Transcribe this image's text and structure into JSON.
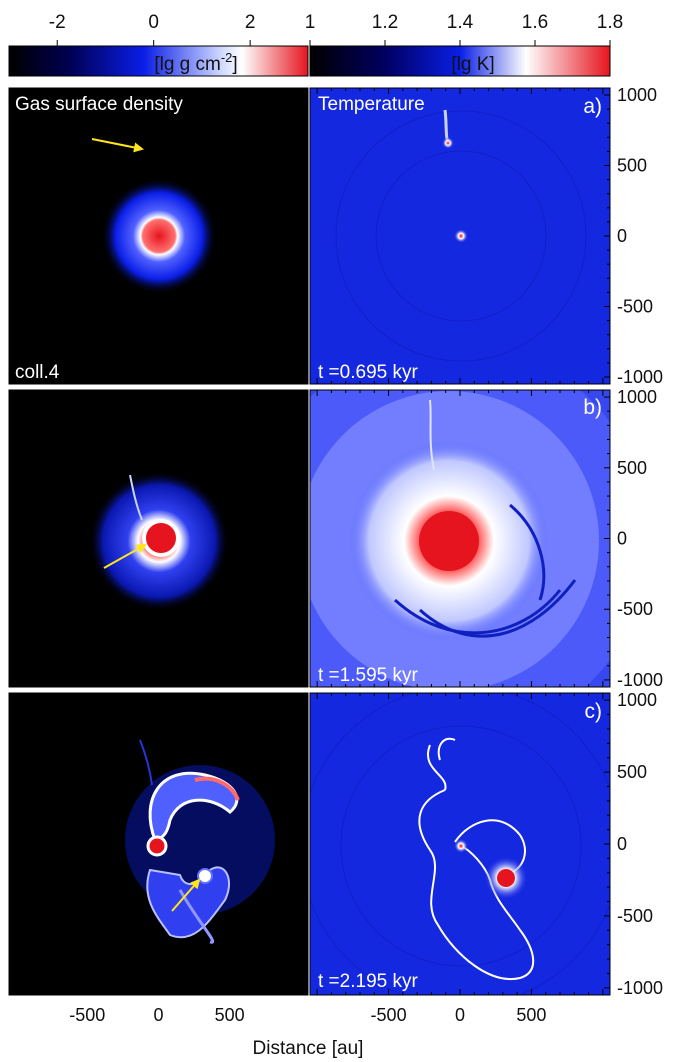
{
  "chart_data": {
    "type": "heatmap",
    "colorbars": [
      {
        "label": "[lg g cm-2]",
        "label_main": "[lg g cm",
        "label_sup": "-2",
        "label_end": "]",
        "ticks": [
          "-2",
          "0",
          "2"
        ],
        "range": [
          -3,
          3.2
        ]
      },
      {
        "label": "[lg K]",
        "ticks": [
          "1",
          "1.2",
          "1.4",
          "1.6",
          "1.8"
        ],
        "range": [
          1,
          1.8
        ]
      }
    ],
    "columns": [
      "Gas surface density",
      "Temperature"
    ],
    "left_panel_labels": [
      "coll.4",
      "",
      ""
    ],
    "rows": [
      {
        "panel": "a)",
        "time": "t =0.695 kyr"
      },
      {
        "panel": "b)",
        "time": "t =1.595 kyr"
      },
      {
        "panel": "c)",
        "time": "t =2.195 kyr"
      }
    ],
    "x_axis": {
      "label": "Distance [au]",
      "ticks": [
        "-500",
        "0",
        "500"
      ],
      "range": [
        -1050,
        1050
      ]
    },
    "y_axis": {
      "ticks": [
        "1000",
        "500",
        "0",
        "-500",
        "-1000"
      ],
      "range": [
        -1050,
        1050
      ],
      "side": "right"
    },
    "colors": {
      "background": "#000000",
      "low": "#0a1ee6",
      "mid": "#ffffff",
      "high": "#e6141e",
      "arrow": "#ffe61a"
    }
  }
}
